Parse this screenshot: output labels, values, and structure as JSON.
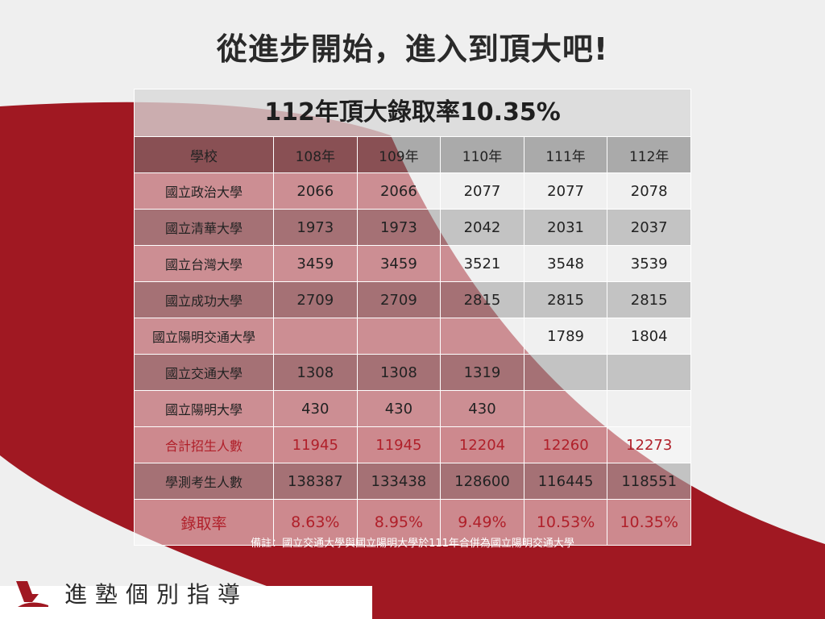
{
  "headline": "從進步開始，進入到頂大吧!",
  "table": {
    "title": "112年頂大錄取率10.35%",
    "headers": [
      "學校",
      "108年",
      "109年",
      "110年",
      "111年",
      "112年"
    ],
    "rows": [
      [
        "國立政治大學",
        "2066",
        "2066",
        "2077",
        "2077",
        "2078"
      ],
      [
        "國立清華大學",
        "1973",
        "1973",
        "2042",
        "2031",
        "2037"
      ],
      [
        "國立台灣大學",
        "3459",
        "3459",
        "3521",
        "3548",
        "3539"
      ],
      [
        "國立成功大學",
        "2709",
        "2709",
        "2815",
        "2815",
        "2815"
      ],
      [
        "國立陽明交通大學",
        "",
        "",
        "",
        "1789",
        "1804"
      ],
      [
        "國立交通大學",
        "1308",
        "1308",
        "1319",
        "",
        ""
      ],
      [
        "國立陽明大學",
        "430",
        "430",
        "430",
        "",
        ""
      ],
      [
        "合計招生人數",
        "11945",
        "11945",
        "12204",
        "12260",
        "12273"
      ],
      [
        "學測考生人數",
        "138387",
        "133438",
        "128600",
        "116445",
        "118551"
      ],
      [
        "錄取率",
        "8.63%",
        "8.95%",
        "9.49%",
        "10.53%",
        "10.35%"
      ]
    ]
  },
  "note": "備註：國立交通大學與國立陽明大學於111年合併為國立陽明交通大學",
  "brand": {
    "name": "進塾個別指導",
    "logo_icon": "eagle-logo-icon"
  },
  "colors": {
    "brand_red": "#a01822",
    "highlight_red": "#b0202a"
  }
}
